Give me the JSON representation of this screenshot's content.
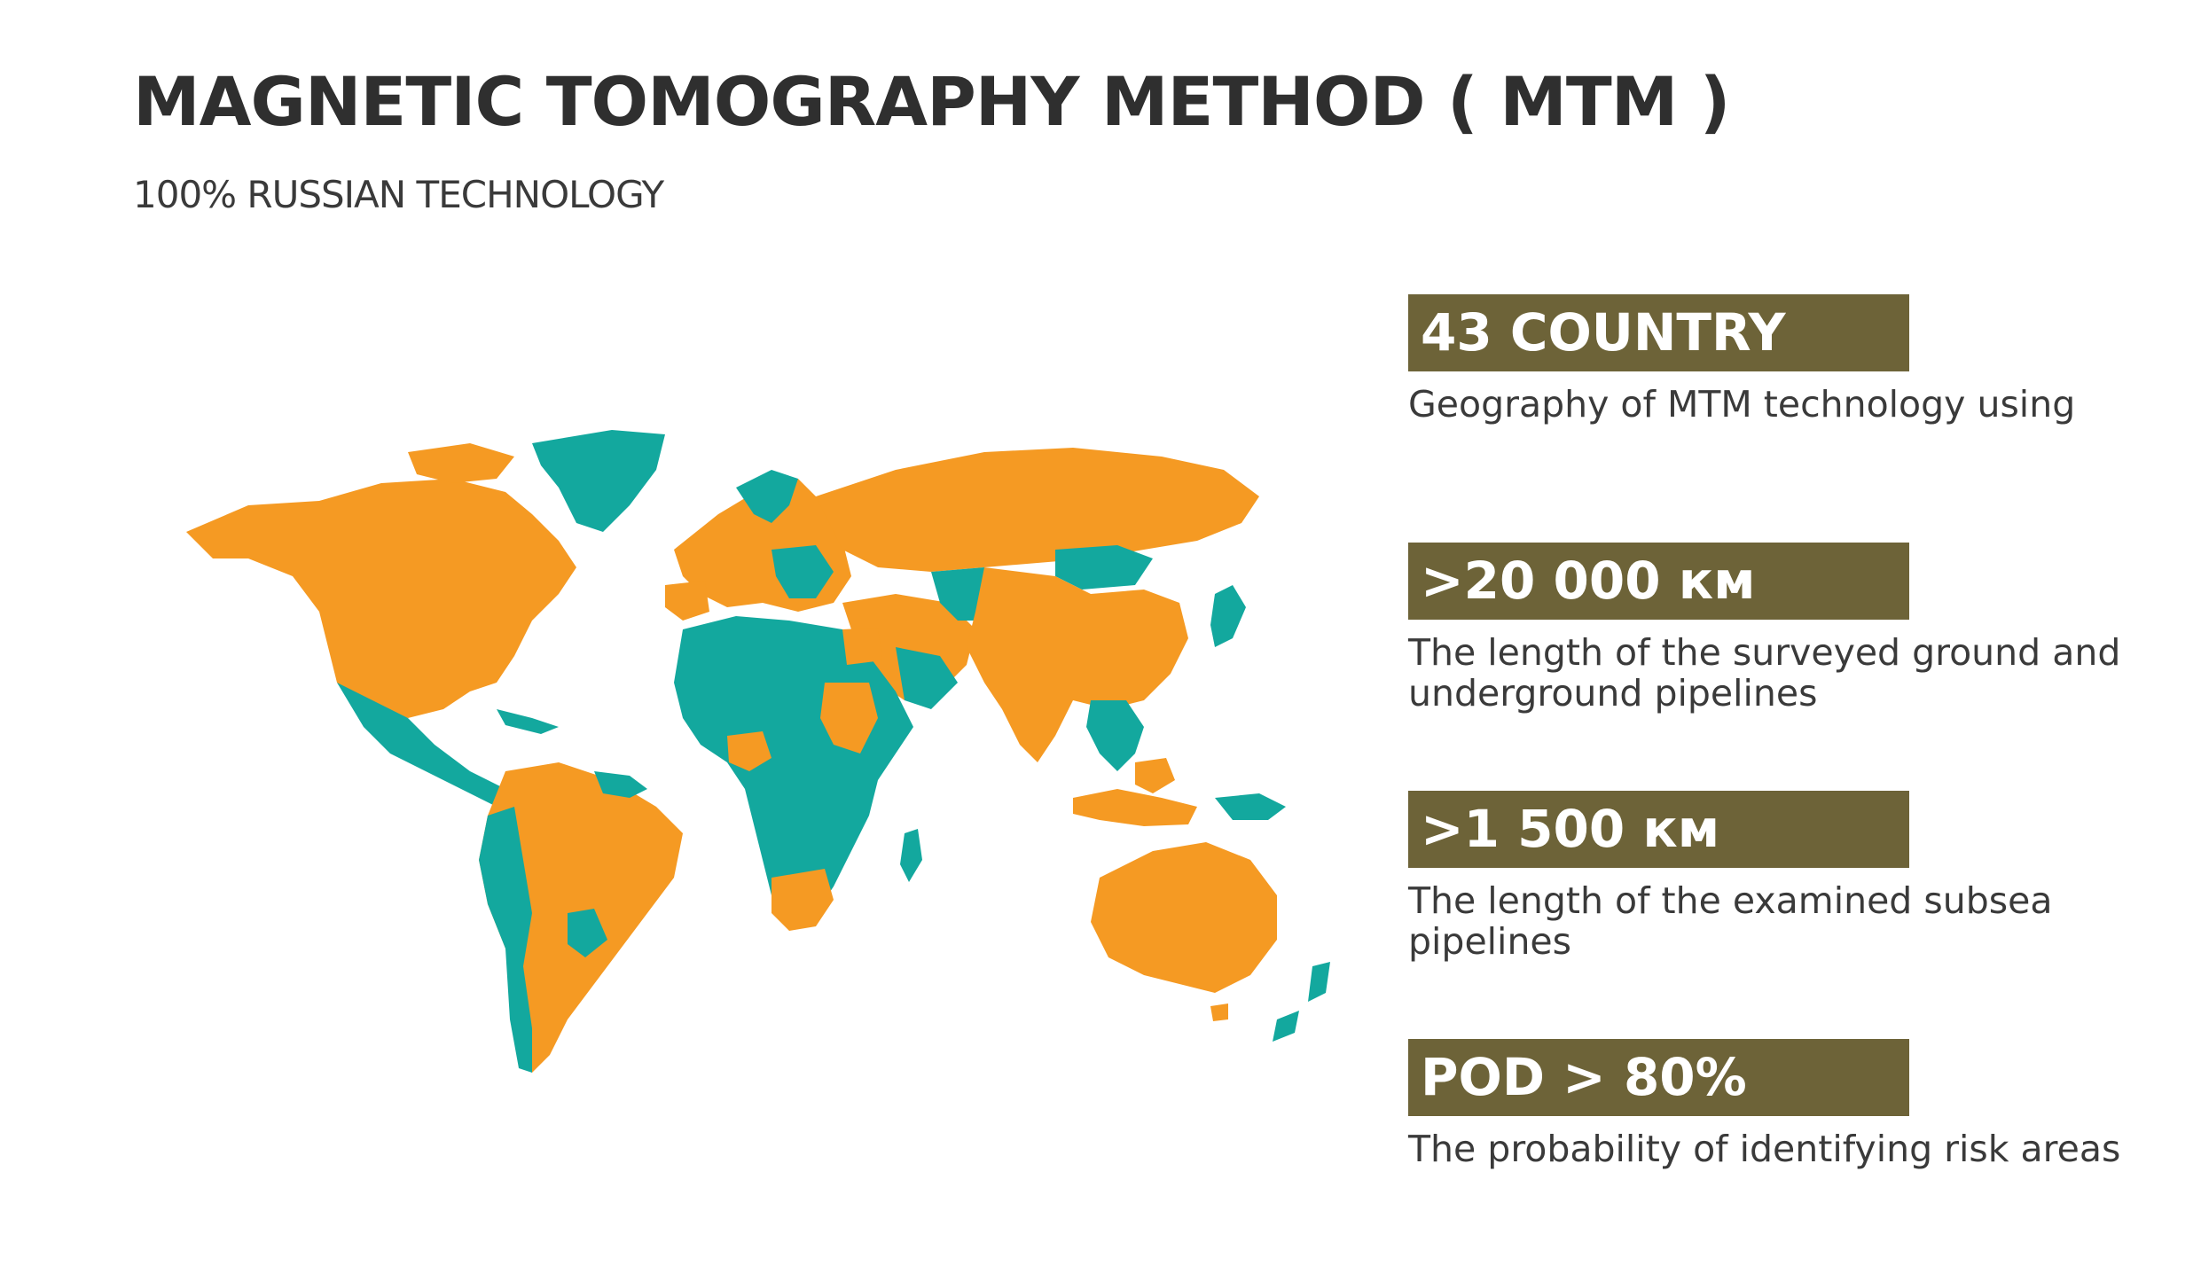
{
  "header": {
    "title": "MAGNETIC TOMOGRAPHY METHOD ( MTM )",
    "subtitle": "100% RUSSIAN TECHNOLOGY"
  },
  "map": {
    "legend_colors": {
      "used": "#f59a23",
      "not_used": "#13a89e"
    }
  },
  "stats": [
    {
      "badge": "43 COUNTRY",
      "description": "Geography of MTM technology using"
    },
    {
      "badge": ">20 000 км",
      "description": "The length of the surveyed ground and underground pipelines"
    },
    {
      "badge": ">1 500 км",
      "description": "The length of the examined subsea pipelines"
    },
    {
      "badge": "POD > 80%",
      "description": "The probability of identifying risk areas"
    }
  ],
  "colors": {
    "badge_background": "#6d6338",
    "badge_text": "#ffffff",
    "title_text": "#2f2f2f"
  }
}
